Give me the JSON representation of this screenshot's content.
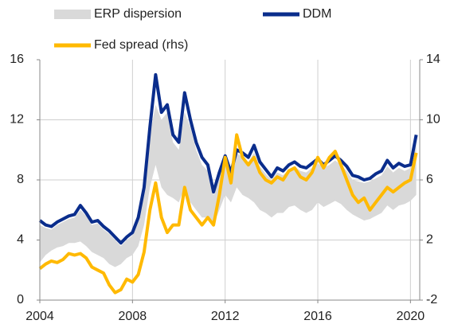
{
  "chart_data": {
    "type": "line",
    "x": [
      2004,
      2004.25,
      2004.5,
      2004.75,
      2005,
      2005.25,
      2005.5,
      2005.75,
      2006,
      2006.25,
      2006.5,
      2006.75,
      2007,
      2007.25,
      2007.5,
      2007.75,
      2008,
      2008.25,
      2008.5,
      2008.75,
      2009,
      2009.25,
      2009.5,
      2009.75,
      2010,
      2010.25,
      2010.5,
      2010.75,
      2011,
      2011.25,
      2011.5,
      2011.75,
      2012,
      2012.25,
      2012.5,
      2012.75,
      2013,
      2013.25,
      2013.5,
      2013.75,
      2014,
      2014.25,
      2014.5,
      2014.75,
      2015,
      2015.25,
      2015.5,
      2015.75,
      2016,
      2016.25,
      2016.5,
      2016.75,
      2017,
      2017.25,
      2017.5,
      2017.75,
      2018,
      2018.25,
      2018.5,
      2018.75,
      2019,
      2019.25,
      2019.5,
      2019.75,
      2020,
      2020.25
    ],
    "series": [
      {
        "name": "ERP dispersion",
        "color": "#d9d9d9",
        "lower": [
          2.5,
          3.0,
          3.3,
          3.5,
          3.6,
          3.8,
          3.8,
          3.9,
          3.6,
          3.2,
          3.0,
          2.8,
          2.4,
          2.2,
          2.4,
          2.8,
          3.0,
          3.6,
          5.0,
          7.5,
          9.0,
          7.5,
          7.0,
          6.8,
          6.5,
          7.5,
          6.5,
          6.0,
          5.5,
          5.5,
          5.0,
          6.0,
          7.0,
          6.5,
          7.5,
          7.0,
          6.8,
          6.5,
          6.0,
          5.8,
          5.5,
          5.8,
          5.8,
          6.2,
          6.3,
          6.0,
          5.8,
          6.0,
          6.5,
          6.2,
          6.4,
          6.6,
          6.4,
          6.0,
          5.7,
          5.5,
          5.3,
          5.4,
          5.6,
          5.8,
          6.3,
          6.0,
          6.3,
          6.4,
          6.6,
          7.0
        ],
        "upper": [
          5.0,
          4.8,
          4.7,
          5.0,
          5.2,
          5.4,
          5.5,
          6.0,
          5.6,
          5.0,
          5.1,
          4.7,
          4.4,
          4.0,
          3.6,
          4.0,
          4.3,
          5.3,
          7.3,
          11.0,
          13.0,
          12.0,
          12.5,
          10.5,
          10.0,
          12.5,
          11.5,
          10.0,
          9.0,
          8.6,
          7.0,
          8.3,
          9.3,
          8.3,
          9.8,
          9.5,
          9.2,
          9.8,
          8.9,
          8.4,
          8.0,
          8.5,
          8.3,
          8.7,
          8.9,
          8.6,
          8.5,
          8.8,
          9.1,
          8.8,
          9.0,
          9.3,
          9.0,
          8.6,
          8.0,
          7.9,
          7.8,
          7.9,
          8.1,
          8.3,
          8.9,
          8.5,
          8.8,
          8.6,
          8.8,
          10.5
        ]
      },
      {
        "name": "DDM",
        "color": "#0a2d8c",
        "values": [
          5.3,
          5.0,
          4.9,
          5.2,
          5.4,
          5.6,
          5.7,
          6.3,
          5.8,
          5.2,
          5.3,
          4.9,
          4.6,
          4.2,
          3.8,
          4.2,
          4.5,
          5.5,
          7.5,
          11.5,
          15.0,
          12.5,
          13.0,
          11.0,
          10.5,
          13.8,
          12.0,
          10.5,
          9.5,
          9.0,
          7.2,
          8.5,
          9.6,
          8.5,
          10.0,
          9.8,
          9.5,
          10.3,
          9.2,
          8.7,
          8.2,
          8.8,
          8.6,
          9.0,
          9.2,
          8.9,
          8.8,
          9.1,
          9.4,
          9.0,
          9.3,
          9.6,
          9.3,
          8.9,
          8.3,
          8.2,
          8.0,
          8.1,
          8.4,
          8.6,
          9.3,
          8.8,
          9.1,
          8.9,
          9.0,
          11.0
        ]
      },
      {
        "name": "Fed spread (rhs)",
        "color": "#ffb900",
        "axis": "y2",
        "values": [
          0.1,
          0.4,
          0.6,
          0.5,
          0.7,
          1.1,
          1.0,
          1.1,
          0.8,
          0.2,
          0.0,
          -0.2,
          -1.0,
          -1.5,
          -1.3,
          -0.6,
          -0.8,
          -0.3,
          1.2,
          4.0,
          5.8,
          3.5,
          2.5,
          3.0,
          3.0,
          5.5,
          4.0,
          3.5,
          3.0,
          3.5,
          3.0,
          5.0,
          7.5,
          5.8,
          9.0,
          7.5,
          7.0,
          7.5,
          6.5,
          6.0,
          5.8,
          6.2,
          6.0,
          6.6,
          6.8,
          6.2,
          6.0,
          6.5,
          7.5,
          6.8,
          7.5,
          7.9,
          7.0,
          6.0,
          5.0,
          4.5,
          4.8,
          4.0,
          4.5,
          5.0,
          5.5,
          5.2,
          5.5,
          5.8,
          6.0,
          7.8
        ]
      }
    ],
    "xlim": [
      2004,
      2020.4
    ],
    "xticks": [
      2004,
      2008,
      2012,
      2016,
      2020
    ],
    "ylim": [
      0,
      16
    ],
    "yticks": [
      0,
      4,
      8,
      12,
      16
    ],
    "y2lim": [
      -2,
      14
    ],
    "y2ticks": [
      -2,
      2,
      6,
      10,
      14
    ],
    "grid": true
  }
}
